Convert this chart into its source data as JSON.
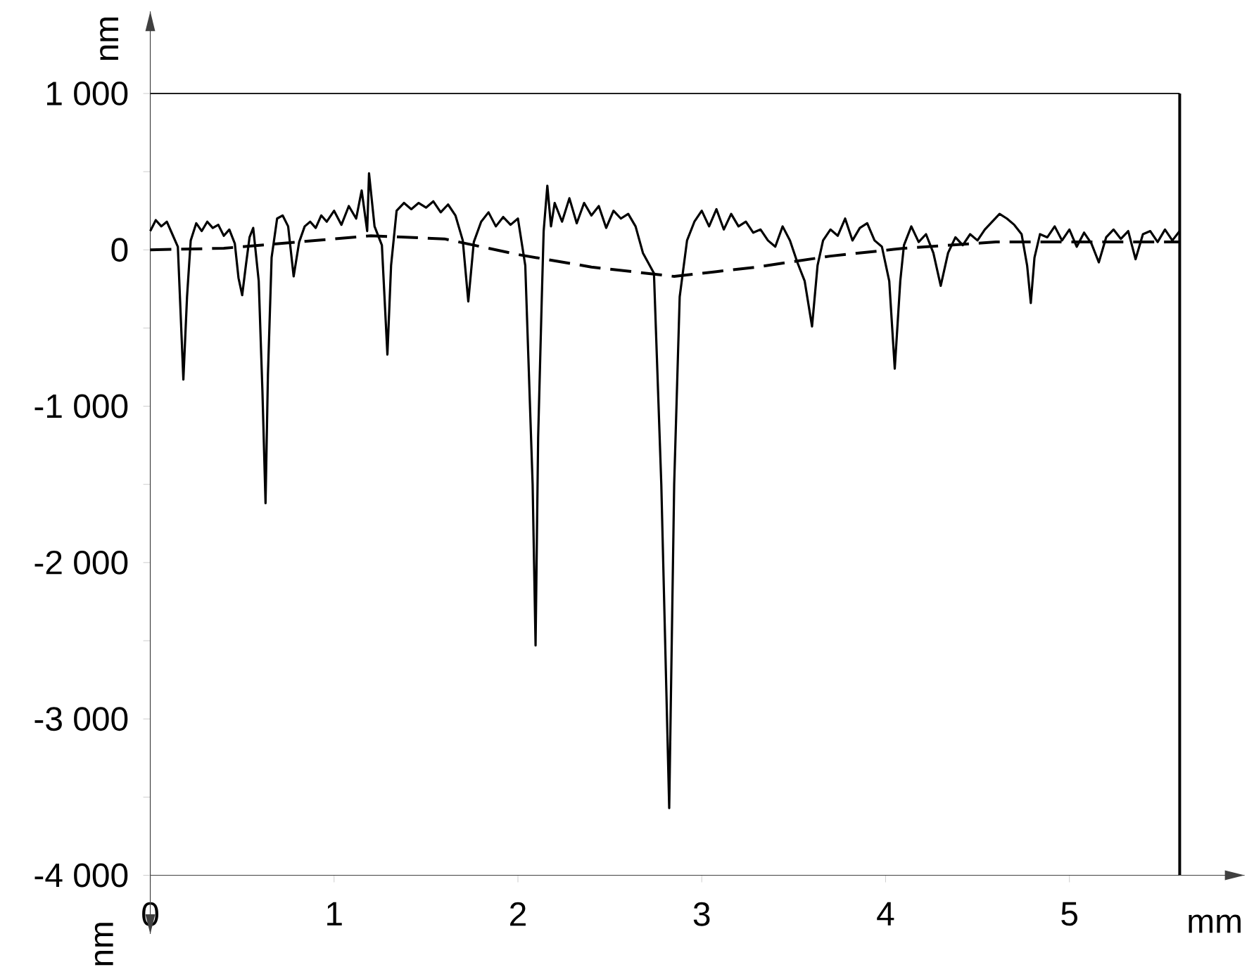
{
  "chart_data": {
    "type": "line",
    "xlabel": "mm",
    "ylabel": "nm",
    "annotations": [
      "nm"
    ],
    "xlim": [
      0,
      5.6
    ],
    "ylim": [
      -4000,
      1000
    ],
    "xticks": [
      0,
      1,
      2,
      3,
      4,
      5
    ],
    "yticks": [
      {
        "value": -4000,
        "label": "-4 000"
      },
      {
        "value": -3500,
        "label": null
      },
      {
        "value": -3000,
        "label": "-3 000"
      },
      {
        "value": -2500,
        "label": null
      },
      {
        "value": -2000,
        "label": "-2 000"
      },
      {
        "value": -1500,
        "label": null
      },
      {
        "value": -1000,
        "label": "-1 000"
      },
      {
        "value": -500,
        "label": null
      },
      0,
      {
        "value": 500,
        "label": null
      },
      {
        "value": 1000,
        "label": "1 000"
      }
    ],
    "series": [
      {
        "color": "#000000",
        "line_style": "solid",
        "x": [
          0.0,
          0.03,
          0.06,
          0.09,
          0.12,
          0.15,
          0.18,
          0.2,
          0.22,
          0.25,
          0.28,
          0.31,
          0.34,
          0.37,
          0.4,
          0.43,
          0.46,
          0.48,
          0.5,
          0.52,
          0.54,
          0.56,
          0.59,
          0.61,
          0.627,
          0.64,
          0.66,
          0.69,
          0.72,
          0.75,
          0.78,
          0.81,
          0.84,
          0.87,
          0.9,
          0.93,
          0.96,
          1.0,
          1.04,
          1.08,
          1.12,
          1.15,
          1.18,
          1.19,
          1.22,
          1.26,
          1.29,
          1.31,
          1.34,
          1.38,
          1.42,
          1.46,
          1.5,
          1.54,
          1.58,
          1.62,
          1.66,
          1.7,
          1.73,
          1.76,
          1.8,
          1.84,
          1.88,
          1.92,
          1.96,
          2.0,
          2.04,
          2.08,
          2.096,
          2.11,
          2.13,
          2.14,
          2.16,
          2.18,
          2.2,
          2.24,
          2.28,
          2.32,
          2.36,
          2.4,
          2.44,
          2.48,
          2.52,
          2.56,
          2.6,
          2.64,
          2.68,
          2.74,
          2.78,
          2.823,
          2.85,
          2.88,
          2.92,
          2.96,
          3.0,
          3.04,
          3.08,
          3.12,
          3.16,
          3.2,
          3.24,
          3.28,
          3.32,
          3.36,
          3.4,
          3.44,
          3.48,
          3.52,
          3.56,
          3.6,
          3.63,
          3.66,
          3.7,
          3.74,
          3.78,
          3.82,
          3.86,
          3.9,
          3.94,
          3.98,
          4.02,
          4.05,
          4.08,
          4.1,
          4.14,
          4.18,
          4.22,
          4.26,
          4.3,
          4.34,
          4.38,
          4.42,
          4.46,
          4.5,
          4.54,
          4.58,
          4.62,
          4.66,
          4.7,
          4.74,
          4.77,
          4.79,
          4.81,
          4.84,
          4.88,
          4.92,
          4.96,
          5.0,
          5.04,
          5.08,
          5.12,
          5.16,
          5.2,
          5.24,
          5.28,
          5.32,
          5.36,
          5.4,
          5.44,
          5.48,
          5.52,
          5.56,
          5.6
        ],
        "values": [
          120,
          190,
          150,
          180,
          100,
          20,
          -830,
          -300,
          60,
          170,
          120,
          180,
          140,
          160,
          90,
          130,
          40,
          -180,
          -290,
          -100,
          80,
          140,
          -200,
          -900,
          -1620,
          -800,
          -50,
          200,
          220,
          150,
          -170,
          50,
          150,
          180,
          140,
          220,
          180,
          250,
          160,
          280,
          200,
          380,
          120,
          490,
          150,
          30,
          -670,
          -100,
          250,
          300,
          260,
          300,
          270,
          310,
          240,
          290,
          220,
          60,
          -330,
          50,
          180,
          240,
          150,
          210,
          160,
          200,
          -100,
          -1500,
          -2530,
          -1200,
          -300,
          120,
          410,
          150,
          300,
          180,
          330,
          170,
          300,
          220,
          280,
          140,
          250,
          200,
          230,
          150,
          -20,
          -150,
          -1500,
          -3570,
          -1500,
          -300,
          60,
          180,
          250,
          150,
          260,
          130,
          230,
          150,
          180,
          110,
          130,
          60,
          20,
          150,
          60,
          -80,
          -200,
          -490,
          -100,
          60,
          130,
          90,
          200,
          60,
          140,
          170,
          60,
          20,
          -200,
          -760,
          -200,
          30,
          150,
          50,
          100,
          -20,
          -230,
          -20,
          80,
          30,
          100,
          60,
          130,
          180,
          230,
          200,
          160,
          100,
          -100,
          -340,
          -50,
          100,
          80,
          150,
          60,
          130,
          20,
          110,
          40,
          -80,
          80,
          130,
          70,
          120,
          -60,
          100,
          120,
          50,
          130,
          60,
          120
        ]
      },
      {
        "color": "#000000",
        "line_style": "dashed",
        "x": [
          0,
          0.4,
          0.8,
          1.2,
          1.6,
          2.0,
          2.4,
          2.85,
          3.3,
          3.7,
          4.1,
          4.6,
          5.0,
          5.6
        ],
        "values": [
          0,
          10,
          50,
          90,
          70,
          -30,
          -110,
          -170,
          -110,
          -40,
          10,
          50,
          50,
          50
        ]
      }
    ]
  }
}
